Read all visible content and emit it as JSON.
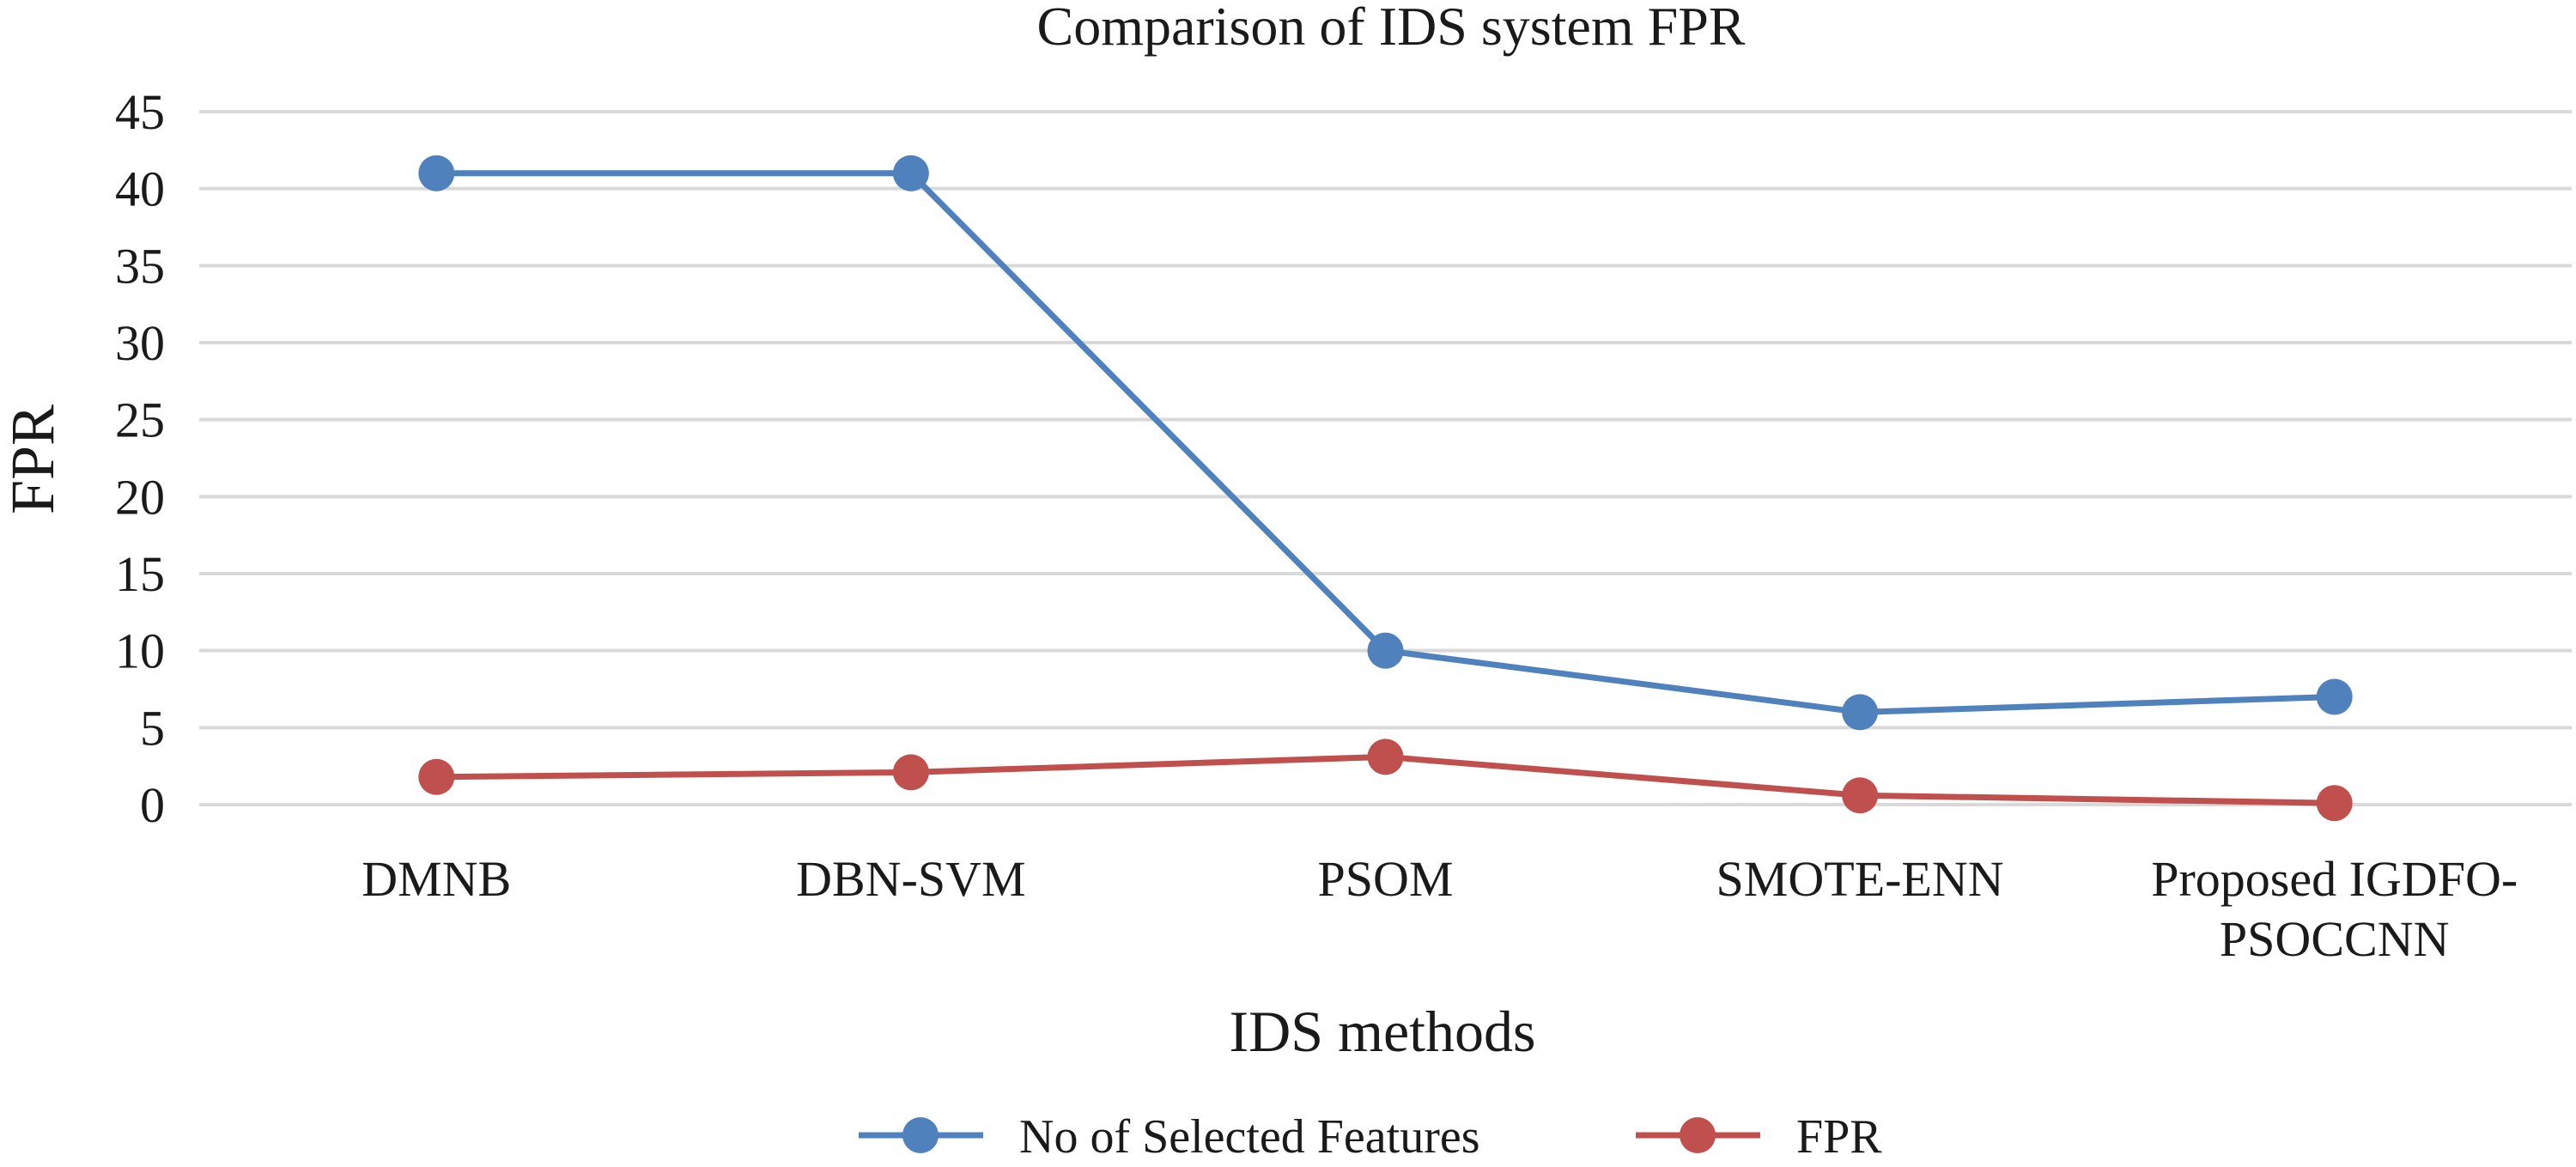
{
  "chart_data": {
    "type": "line",
    "title": "Comparison of IDS system FPR",
    "xlabel": "IDS methods",
    "ylabel": "FPR",
    "categories": [
      [
        "DMNB"
      ],
      [
        "DBN-SVM"
      ],
      [
        "PSOM"
      ],
      [
        "SMOTE-ENN"
      ],
      [
        "Proposed IGDFO-",
        "PSOCCNN"
      ]
    ],
    "ylim": [
      0,
      45
    ],
    "yticks": [
      0,
      5,
      10,
      15,
      20,
      25,
      30,
      35,
      40,
      45
    ],
    "grid": true,
    "legend_position": "bottom",
    "series": [
      {
        "name": "No of Selected Features",
        "color": "#4f81bd",
        "values": [
          41,
          41,
          10,
          6,
          7
        ]
      },
      {
        "name": "FPR",
        "color": "#c0504d",
        "values": [
          1.8,
          2.1,
          3.1,
          0.6,
          0.1
        ]
      }
    ]
  }
}
